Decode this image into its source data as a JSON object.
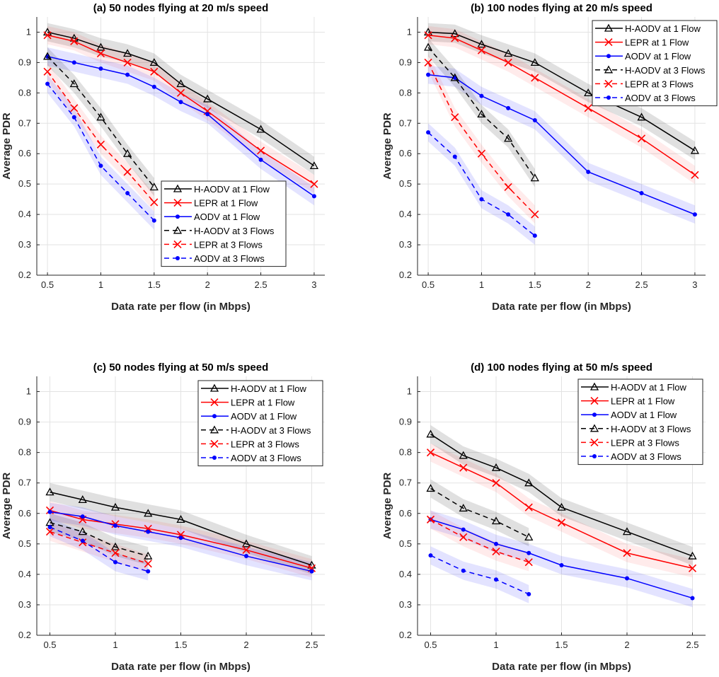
{
  "chart_data": [
    {
      "type": "line",
      "title": "(a) 50 nodes flying at 20 m/s speed",
      "xlabel": "Data rate per flow (in Mbps)",
      "ylabel": "Average PDR",
      "xlim": [
        0.4,
        3.1
      ],
      "ylim": [
        0.2,
        1.05
      ],
      "xticks": [
        0.5,
        1,
        1.5,
        2,
        2.5,
        3
      ],
      "yticks": [
        0.2,
        0.3,
        0.4,
        0.5,
        0.6,
        0.7,
        0.8,
        0.9,
        1
      ],
      "grid": true,
      "legend_position": "lower-middle",
      "band": 0.03,
      "series": [
        {
          "name": "H-AODV at 1 Flow",
          "color": "#000000",
          "dash": false,
          "marker": "triangle",
          "x": [
            0.5,
            0.75,
            1,
            1.25,
            1.5,
            1.75,
            2,
            2.5,
            3
          ],
          "y": [
            1,
            0.98,
            0.95,
            0.93,
            0.9,
            0.83,
            0.78,
            0.68,
            0.56
          ]
        },
        {
          "name": "LEPR at 1 Flow",
          "color": "#ff0000",
          "dash": false,
          "marker": "x",
          "x": [
            0.5,
            0.75,
            1,
            1.25,
            1.5,
            1.75,
            2,
            2.5,
            3
          ],
          "y": [
            0.99,
            0.97,
            0.93,
            0.9,
            0.87,
            0.8,
            0.74,
            0.61,
            0.5
          ]
        },
        {
          "name": "AODV at 1 Flow",
          "color": "#0000ff",
          "dash": false,
          "marker": "dot",
          "x": [
            0.5,
            0.75,
            1,
            1.25,
            1.5,
            1.75,
            2,
            2.5,
            3
          ],
          "y": [
            0.92,
            0.9,
            0.88,
            0.86,
            0.82,
            0.77,
            0.73,
            0.58,
            0.46
          ]
        },
        {
          "name": "H-AODV at 3 Flows",
          "color": "#000000",
          "dash": true,
          "marker": "triangle",
          "x": [
            0.5,
            0.75,
            1,
            1.25,
            1.5
          ],
          "y": [
            0.92,
            0.83,
            0.72,
            0.6,
            0.49
          ]
        },
        {
          "name": "LEPR at 3 Flows",
          "color": "#ff0000",
          "dash": true,
          "marker": "x",
          "x": [
            0.5,
            0.75,
            1,
            1.25,
            1.5
          ],
          "y": [
            0.87,
            0.75,
            0.63,
            0.54,
            0.44
          ]
        },
        {
          "name": "AODV at 3 Flows",
          "color": "#0000ff",
          "dash": true,
          "marker": "dot",
          "x": [
            0.5,
            0.75,
            1,
            1.25,
            1.5
          ],
          "y": [
            0.83,
            0.72,
            0.56,
            0.47,
            0.38
          ]
        }
      ]
    },
    {
      "type": "line",
      "title": "(b) 100 nodes flying at 20 m/s speed",
      "xlabel": "Data rate per flow (in Mbps)",
      "ylabel": "Average PDR",
      "xlim": [
        0.4,
        3.1
      ],
      "ylim": [
        0.2,
        1.05
      ],
      "xticks": [
        0.5,
        1,
        1.5,
        2,
        2.5,
        3
      ],
      "yticks": [
        0.2,
        0.3,
        0.4,
        0.5,
        0.6,
        0.7,
        0.8,
        0.9,
        1
      ],
      "grid": true,
      "legend_position": "top-right",
      "band": 0.03,
      "series": [
        {
          "name": "H-AODV at 1 Flow",
          "color": "#000000",
          "dash": false,
          "marker": "triangle",
          "x": [
            0.5,
            0.75,
            1,
            1.25,
            1.5,
            2,
            2.5,
            3
          ],
          "y": [
            1,
            0.995,
            0.96,
            0.93,
            0.9,
            0.8,
            0.72,
            0.61
          ]
        },
        {
          "name": "LEPR at 1 Flow",
          "color": "#ff0000",
          "dash": false,
          "marker": "x",
          "x": [
            0.5,
            0.75,
            1,
            1.25,
            1.5,
            2,
            2.5,
            3
          ],
          "y": [
            0.99,
            0.98,
            0.94,
            0.9,
            0.85,
            0.75,
            0.65,
            0.53
          ]
        },
        {
          "name": "AODV at 1 Flow",
          "color": "#0000ff",
          "dash": false,
          "marker": "dot",
          "x": [
            0.5,
            0.75,
            1,
            1.25,
            1.5,
            2,
            2.5,
            3
          ],
          "y": [
            0.86,
            0.85,
            0.79,
            0.75,
            0.71,
            0.54,
            0.47,
            0.4
          ]
        },
        {
          "name": "H-AODV at 3 Flows",
          "color": "#000000",
          "dash": true,
          "marker": "triangle",
          "x": [
            0.5,
            0.75,
            1,
            1.25,
            1.5
          ],
          "y": [
            0.95,
            0.85,
            0.73,
            0.65,
            0.52
          ]
        },
        {
          "name": "LEPR at 3 Flows",
          "color": "#ff0000",
          "dash": true,
          "marker": "x",
          "x": [
            0.5,
            0.75,
            1,
            1.25,
            1.5
          ],
          "y": [
            0.9,
            0.72,
            0.6,
            0.49,
            0.4
          ]
        },
        {
          "name": "AODV at 3 Flows",
          "color": "#0000ff",
          "dash": true,
          "marker": "dot",
          "x": [
            0.5,
            0.75,
            1,
            1.25,
            1.5
          ],
          "y": [
            0.67,
            0.59,
            0.45,
            0.4,
            0.33
          ]
        }
      ]
    },
    {
      "type": "line",
      "title": "(c) 50 nodes flying at 50 m/s speed",
      "xlabel": "Data rate per flow (in Mbps)",
      "ylabel": "Average PDR",
      "xlim": [
        0.4,
        2.6
      ],
      "ylim": [
        0.2,
        1.05
      ],
      "xticks": [
        0.5,
        1,
        1.5,
        2,
        2.5
      ],
      "yticks": [
        0.2,
        0.3,
        0.4,
        0.5,
        0.6,
        0.7,
        0.8,
        0.9,
        1
      ],
      "grid": true,
      "legend_position": "top-right",
      "band": 0.03,
      "series": [
        {
          "name": "H-AODV at 1 Flow",
          "color": "#000000",
          "dash": false,
          "marker": "triangle",
          "x": [
            0.5,
            0.75,
            1,
            1.25,
            1.5,
            2,
            2.5
          ],
          "y": [
            0.67,
            0.645,
            0.62,
            0.6,
            0.58,
            0.5,
            0.43
          ]
        },
        {
          "name": "LEPR at 1 Flow",
          "color": "#ff0000",
          "dash": false,
          "marker": "x",
          "x": [
            0.5,
            0.75,
            1,
            1.25,
            1.5,
            2,
            2.5
          ],
          "y": [
            0.61,
            0.58,
            0.565,
            0.55,
            0.53,
            0.48,
            0.42
          ]
        },
        {
          "name": "AODV at 1 Flow",
          "color": "#0000ff",
          "dash": false,
          "marker": "dot",
          "x": [
            0.5,
            0.75,
            1,
            1.25,
            1.5,
            2,
            2.5
          ],
          "y": [
            0.605,
            0.59,
            0.56,
            0.54,
            0.52,
            0.46,
            0.41
          ]
        },
        {
          "name": "H-AODV at 3 Flows",
          "color": "#000000",
          "dash": true,
          "marker": "triangle",
          "x": [
            0.5,
            0.75,
            1,
            1.25
          ],
          "y": [
            0.57,
            0.54,
            0.49,
            0.46
          ]
        },
        {
          "name": "LEPR at 3 Flows",
          "color": "#ff0000",
          "dash": true,
          "marker": "x",
          "x": [
            0.5,
            0.75,
            1,
            1.25
          ],
          "y": [
            0.54,
            0.505,
            0.47,
            0.435
          ]
        },
        {
          "name": "AODV at 3 Flows",
          "color": "#0000ff",
          "dash": true,
          "marker": "dot",
          "x": [
            0.5,
            0.75,
            1,
            1.25
          ],
          "y": [
            0.555,
            0.51,
            0.44,
            0.41
          ]
        }
      ]
    },
    {
      "type": "line",
      "title": "(d) 100 nodes flying at 50 m/s speed",
      "xlabel": "Data rate per flow (in Mbps)",
      "ylabel": "Average PDR",
      "xlim": [
        0.4,
        2.6
      ],
      "ylim": [
        0.2,
        1.05
      ],
      "xticks": [
        0.5,
        1,
        1.5,
        2,
        2.5
      ],
      "yticks": [
        0.2,
        0.3,
        0.4,
        0.5,
        0.6,
        0.7,
        0.8,
        0.9,
        1
      ],
      "grid": true,
      "legend_position": "top-right",
      "band": 0.03,
      "series": [
        {
          "name": "H-AODV at 1 Flow",
          "color": "#000000",
          "dash": false,
          "marker": "triangle",
          "x": [
            0.5,
            0.75,
            1,
            1.25,
            1.5,
            2,
            2.5
          ],
          "y": [
            0.86,
            0.79,
            0.75,
            0.7,
            0.62,
            0.54,
            0.46
          ]
        },
        {
          "name": "LEPR at 1 Flow",
          "color": "#ff0000",
          "dash": false,
          "marker": "x",
          "x": [
            0.5,
            0.75,
            1,
            1.25,
            1.5,
            2,
            2.5
          ],
          "y": [
            0.8,
            0.75,
            0.7,
            0.62,
            0.57,
            0.47,
            0.42
          ]
        },
        {
          "name": "AODV at 1 Flow",
          "color": "#0000ff",
          "dash": false,
          "marker": "dot",
          "x": [
            0.5,
            0.75,
            1,
            1.25,
            1.5,
            2,
            2.5
          ],
          "y": [
            0.58,
            0.547,
            0.5,
            0.47,
            0.43,
            0.387,
            0.322
          ]
        },
        {
          "name": "H-AODV at 3 Flows",
          "color": "#000000",
          "dash": true,
          "marker": "triangle",
          "x": [
            0.5,
            0.75,
            1,
            1.25
          ],
          "y": [
            0.682,
            0.617,
            0.575,
            0.522
          ]
        },
        {
          "name": "LEPR at 3 Flows",
          "color": "#ff0000",
          "dash": true,
          "marker": "x",
          "x": [
            0.5,
            0.75,
            1,
            1.25
          ],
          "y": [
            0.58,
            0.522,
            0.475,
            0.44
          ]
        },
        {
          "name": "AODV at 3 Flows",
          "color": "#0000ff",
          "dash": true,
          "marker": "dot",
          "x": [
            0.5,
            0.75,
            1,
            1.25
          ],
          "y": [
            0.462,
            0.412,
            0.383,
            0.335
          ]
        }
      ]
    }
  ]
}
